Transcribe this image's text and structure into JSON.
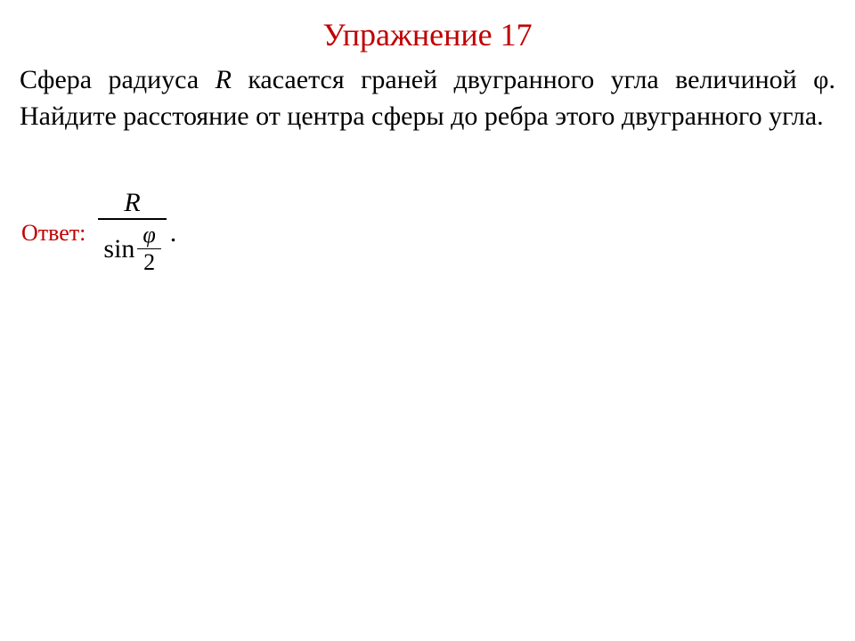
{
  "title": "Упражнение 17",
  "problem": {
    "part1": "Сфера радиуса ",
    "R": "R",
    "part2": " касается граней двугранного угла величиной ",
    "phi": "φ",
    "part3": ". Найдите расстояние от центра сферы до ребра этого двугранного угла."
  },
  "answer_label": "Ответ:",
  "formula": {
    "numerator": "R",
    "denominator_fn": "sin",
    "denominator_frac_num": "φ",
    "denominator_frac_den": "2",
    "period": "."
  },
  "colors": {
    "accent": "#c00000",
    "text": "#000000",
    "background": "#ffffff"
  }
}
